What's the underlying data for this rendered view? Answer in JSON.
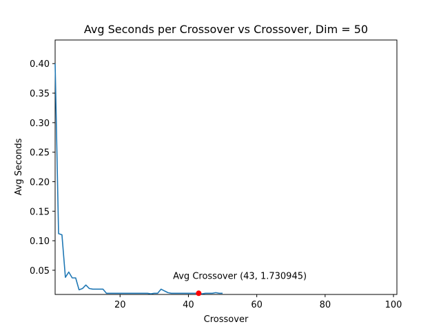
{
  "chart_data": {
    "type": "line",
    "title": "Avg Seconds per Crossover vs Crossover, Dim = 50",
    "xlabel": "Crossover",
    "ylabel": "Avg Seconds",
    "xlim": [
      1,
      101
    ],
    "ylim": [
      0.009,
      0.44
    ],
    "xticks": [
      20,
      40,
      60,
      80,
      100
    ],
    "yticks": [
      0.05,
      0.1,
      0.15,
      0.2,
      0.25,
      0.3,
      0.35,
      0.4
    ],
    "grid": false,
    "colors": {
      "line": "#1f77b4",
      "marker": "#ff0000"
    },
    "series": [
      {
        "x": [
          1,
          2,
          3,
          4,
          5,
          6,
          7,
          8,
          9,
          10,
          11,
          12,
          13,
          14,
          15,
          16,
          17,
          18,
          19,
          20,
          21,
          22,
          23,
          24,
          25,
          26,
          27,
          28,
          29,
          30,
          31,
          32,
          33,
          34,
          35,
          36,
          37,
          38,
          39,
          40,
          41,
          42,
          43,
          44,
          45,
          46,
          47,
          48,
          49,
          50
        ],
        "values": [
          0.4,
          0.112,
          0.11,
          0.038,
          0.047,
          0.037,
          0.037,
          0.017,
          0.019,
          0.025,
          0.019,
          0.018,
          0.018,
          0.018,
          0.018,
          0.011,
          0.011,
          0.011,
          0.011,
          0.011,
          0.011,
          0.011,
          0.011,
          0.011,
          0.011,
          0.011,
          0.011,
          0.011,
          0.01,
          0.011,
          0.011,
          0.018,
          0.015,
          0.012,
          0.011,
          0.011,
          0.011,
          0.011,
          0.011,
          0.011,
          0.011,
          0.011,
          0.011,
          0.01,
          0.011,
          0.011,
          0.011,
          0.012,
          0.011,
          0.011
        ]
      }
    ],
    "highlight_point": {
      "x": 43,
      "y": 0.011
    },
    "annotation": {
      "text": "Avg Crossover (43, 1.730945)",
      "x": 35.5,
      "y": 0.041
    }
  }
}
